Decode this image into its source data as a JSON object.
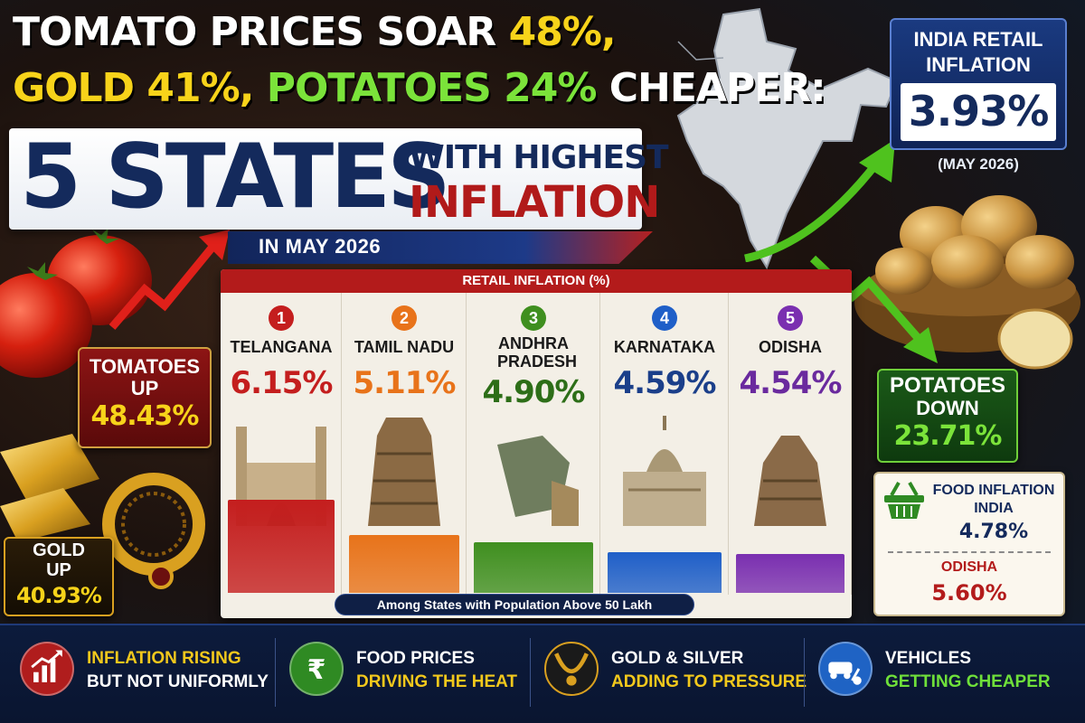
{
  "headline": {
    "line1_a": "TOMATO PRICES SOAR ",
    "line1_b": "48%,",
    "line2_a": "GOLD 41%, ",
    "line2_b": "POTATOES 24%",
    "line2_c": " CHEAPER:",
    "big": "5 STATES",
    "with_highest": "WITH HIGHEST",
    "inflation": "INFLATION",
    "in_month": "IN MAY 2026"
  },
  "india_box": {
    "title_1": "INDIA RETAIL",
    "title_2": "INFLATION",
    "value": "3.93%",
    "date": "(MAY 2026)"
  },
  "callouts": {
    "tomatoes": {
      "line1": "TOMATOES",
      "line2": "UP",
      "value": "48.43%"
    },
    "gold": {
      "line1": "GOLD",
      "line2": "UP",
      "value": "40.93%"
    },
    "potatoes": {
      "line1": "POTATOES",
      "line2": "DOWN",
      "value": "23.71%"
    },
    "food": {
      "title_1": "FOOD INFLATION",
      "india_label": "INDIA",
      "india_value": "4.78%",
      "odisha_label": "ODISHA",
      "odisha_value": "5.60%"
    }
  },
  "chart_data": {
    "type": "bar",
    "title": "RETAIL INFLATION (%)",
    "footnote": "Among States with Population Above 50 Lakh",
    "ranks": [
      "1",
      "2",
      "3",
      "4",
      "5"
    ],
    "categories": [
      "TELANGANA",
      "TAMIL NADU",
      "ANDHRA PRADESH",
      "KARNATAKA",
      "ODISHA"
    ],
    "labels": [
      "6.15%",
      "5.11%",
      "4.90%",
      "4.59%",
      "4.54%"
    ],
    "values": [
      6.15,
      5.11,
      4.9,
      4.59,
      4.54
    ],
    "colors": [
      "#c41e1e",
      "#e8731a",
      "#3f8f1f",
      "#1f5fc8",
      "#7a2fb0"
    ],
    "text_colors": [
      "#c41e1e",
      "#e8731a",
      "#2d6e18",
      "#1b3f8a",
      "#6a2a9e"
    ]
  },
  "footer": {
    "items": [
      {
        "l1": "INFLATION RISING",
        "l2": "BUT NOT UNIFORMLY",
        "icon": "rising-chart-icon",
        "icon_color": "#b01d1d"
      },
      {
        "l1": "FOOD PRICES",
        "l2": "DRIVING THE HEAT",
        "icon": "rupee-icon",
        "icon_color": "#2f8a23"
      },
      {
        "l1": "GOLD & SILVER",
        "l2": "ADDING TO PRESSURE",
        "icon": "necklace-icon",
        "icon_color": "#1a1a1a"
      },
      {
        "l1": "VEHICLES",
        "l2": "GETTING CHEAPER",
        "icon": "vehicle-icon",
        "icon_color": "#1f63c4"
      }
    ],
    "accent_yellow": "#f2c81c",
    "accent_green": "#6fe03a"
  }
}
